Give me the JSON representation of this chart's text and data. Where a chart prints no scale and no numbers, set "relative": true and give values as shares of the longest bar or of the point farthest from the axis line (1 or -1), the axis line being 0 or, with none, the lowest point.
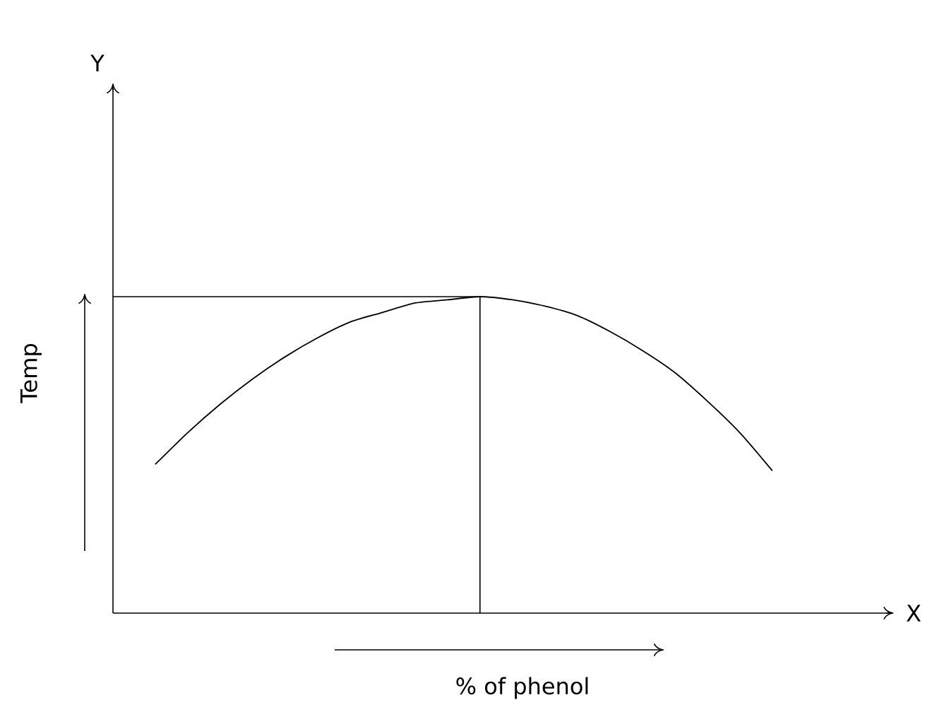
{
  "chart_data": {
    "type": "line",
    "relative": true,
    "xlabel": "% of phenol",
    "ylabel": "Temp",
    "annotations": [
      "X",
      "Y"
    ],
    "categories": [
      null,
      null,
      null,
      null,
      null,
      null,
      null,
      null,
      null,
      null,
      null,
      null,
      null,
      null,
      null,
      null,
      null,
      null,
      null,
      null
    ],
    "series": [
      {
        "color": "#000000",
        "values": [
          0.47,
          0.57,
          0.66,
          0.74,
          0.81,
          0.87,
          0.92,
          0.95,
          0.98,
          0.99,
          1,
          0.99,
          0.97,
          0.94,
          0.89,
          0.83,
          0.76,
          0.67,
          0.57,
          0.45
        ]
      }
    ],
    "ref_lines": [
      {
        "axis": "y",
        "value": 1
      }
    ]
  }
}
